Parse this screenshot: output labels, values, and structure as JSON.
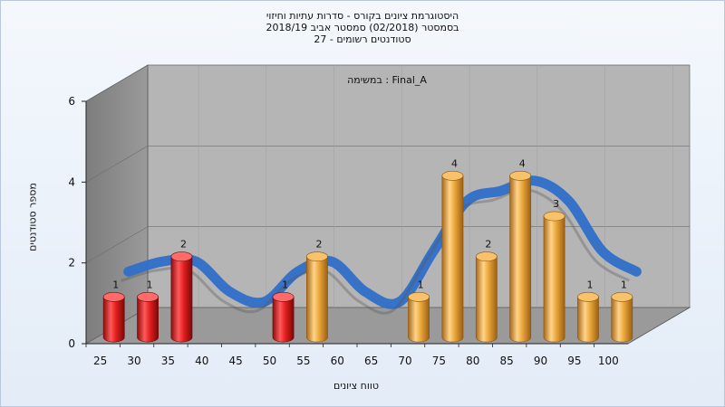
{
  "chart_data": {
    "type": "bar",
    "title_lines": [
      "היסטוגרמת ציונים בקורס - סדרות עתיות וחיזוי",
      "בסמסטר  (02/2018)  סמסטר אביב 2018/19",
      "סטודנטים רשומים - 27"
    ],
    "subtitle": "במשימה : Final_A",
    "xlabel": "טווח ציונים",
    "ylabel": "מספר סטודנטים",
    "categories": [
      "25",
      "30",
      "35",
      "40",
      "45",
      "50",
      "55",
      "60",
      "65",
      "70",
      "75",
      "80",
      "85",
      "90",
      "95",
      "100"
    ],
    "values": [
      1,
      1,
      2,
      0,
      0,
      1,
      2,
      0,
      0,
      1,
      4,
      2,
      4,
      3,
      1,
      1
    ],
    "bar_colors": [
      "red",
      "red",
      "red",
      "red",
      "red",
      "red",
      "orange",
      "orange",
      "orange",
      "orange",
      "orange",
      "orange",
      "orange",
      "orange",
      "orange",
      "orange"
    ],
    "ylim": [
      0,
      6
    ],
    "yticks": [
      0,
      2,
      4,
      6
    ],
    "grid": true,
    "trend_line": true,
    "colors": {
      "fail": "#e21f1f",
      "pass": "#eaa63a",
      "trend_above": "#2f6fc9",
      "trend_below": "#555555",
      "wall": "#8c8c8c",
      "back": "#b5b5b5",
      "floor": "#9a9a9a"
    }
  }
}
